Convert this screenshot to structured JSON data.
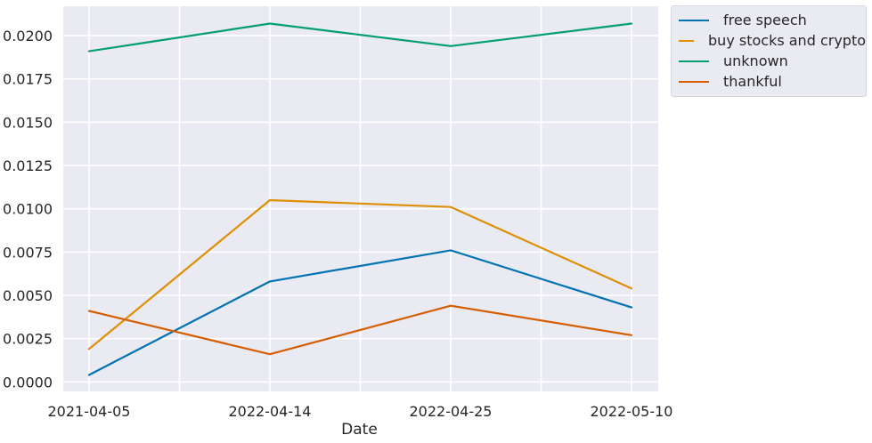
{
  "chart_data": {
    "type": "line",
    "xlabel": "Date",
    "ylabel": "",
    "categories": [
      "2021-04-05",
      "2022-04-14",
      "2022-04-25",
      "2022-05-10"
    ],
    "ylim": [
      -0.00055,
      0.0217
    ],
    "yticks": [
      "0.0000",
      "0.0025",
      "0.0050",
      "0.0075",
      "0.0100",
      "0.0125",
      "0.0150",
      "0.0175",
      "0.0200"
    ],
    "ytick_values": [
      0,
      0.0025,
      0.005,
      0.0075,
      0.01,
      0.0125,
      0.015,
      0.0175,
      0.02
    ],
    "grid": true,
    "legend_position": "outside-top-right",
    "background": "#eaeaf2",
    "series": [
      {
        "name": "free speech",
        "color": "#0173b2",
        "values": [
          0.0004,
          0.0058,
          0.0076,
          0.0043
        ]
      },
      {
        "name": "buy stocks and crypto",
        "color": "#de8f05",
        "values": [
          0.0019,
          0.0105,
          0.0101,
          0.0054
        ]
      },
      {
        "name": "unknown",
        "color": "#029e73",
        "values": [
          0.0191,
          0.0207,
          0.0194,
          0.0207
        ]
      },
      {
        "name": "thankful",
        "color": "#d55e00",
        "values": [
          0.0041,
          0.0016,
          0.0044,
          0.0027
        ]
      }
    ]
  }
}
